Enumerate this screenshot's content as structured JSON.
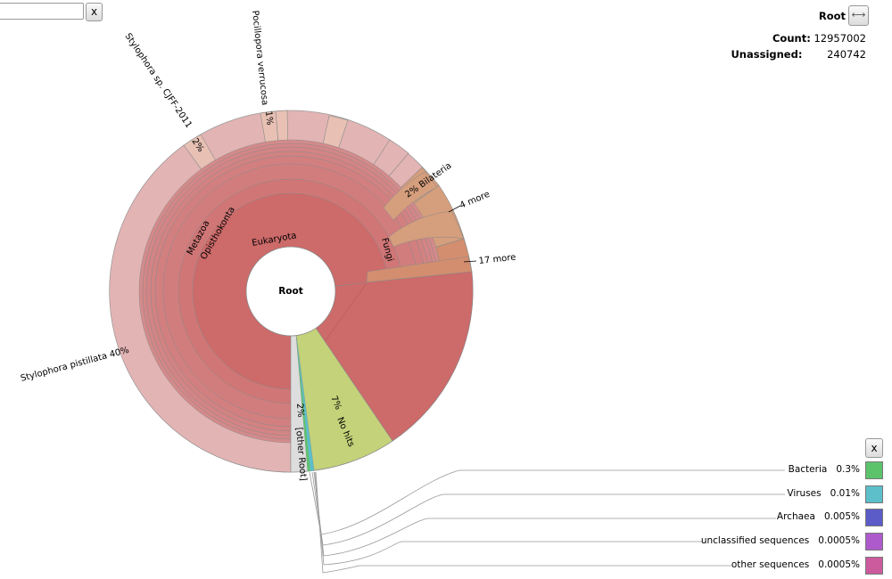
{
  "search": {
    "placeholder": "",
    "clear_label": "x"
  },
  "header": {
    "node_name": "Root",
    "expand_glyph": "⟷",
    "count_label": "Count:",
    "count_value": "12957002",
    "unassigned_label": "Unassigned:",
    "unassigned_value": "240742"
  },
  "chart_data": {
    "type": "sunburst",
    "center_label": "Root",
    "wedges": [
      {
        "name": "Eukaryota",
        "ring": 1,
        "percent": 90.4,
        "color": "#cd6a6a"
      },
      {
        "name": "Opisthokonta",
        "ring": 2,
        "percent": 62.6,
        "color": "#d07676"
      },
      {
        "name": "Metazoa",
        "ring": 3,
        "percent": 60.4,
        "color": "#d27d7d"
      },
      {
        "name": "Fungi",
        "ring": 3,
        "percent": 2.1,
        "color": "#d59e7d"
      },
      {
        "name": "Bilateria",
        "ring": 8,
        "percent": 2,
        "color": "#d59e7d"
      },
      {
        "name": "Stylophora pistillata",
        "ring": 9,
        "percent": 40,
        "color": "#e3b4b4"
      },
      {
        "name": "Stylophora sp. CJFF-2011",
        "ring": 9,
        "percent": 2,
        "color": "#e8c1b4"
      },
      {
        "name": "Pocillopora verrucosa",
        "ring": 9,
        "percent": 1,
        "color": "#e8c1b4"
      },
      {
        "name": "No hits",
        "ring": 1,
        "percent": 7,
        "color": "#c4d279"
      },
      {
        "name": "[other Root]",
        "ring": 1,
        "percent": 2,
        "color": "#dddddd"
      }
    ],
    "wedge_labels": [
      {
        "text": "Eukaryota"
      },
      {
        "text": "Opisthokonta"
      },
      {
        "text": "Metazoa"
      },
      {
        "text": "Fungi"
      },
      {
        "text": "2%  Bilateria"
      },
      {
        "text": "Stylophora pistillata   40%"
      },
      {
        "text": "Stylophora sp. CJFF-2011"
      },
      {
        "text": "2%"
      },
      {
        "text": "Pocillopora verrucosa"
      },
      {
        "text": "1%"
      },
      {
        "text": "7%"
      },
      {
        "text": "No hits"
      },
      {
        "text": "2%"
      },
      {
        "text": "[other Root]"
      }
    ],
    "more_labels": [
      "4 more",
      "17 more"
    ],
    "legend": [
      {
        "name": "Bacteria",
        "percent": "0.3%",
        "color": "#5cc36b"
      },
      {
        "name": "Viruses",
        "percent": "0.01%",
        "color": "#5cbfc9"
      },
      {
        "name": "Archaea",
        "percent": "0.005%",
        "color": "#5b5cc7"
      },
      {
        "name": "unclassified sequences",
        "percent": "0.0005%",
        "color": "#ad5bcc"
      },
      {
        "name": "other sequences",
        "percent": "0.0005%",
        "color": "#cc5b9e"
      }
    ],
    "legend_close_label": "x"
  }
}
